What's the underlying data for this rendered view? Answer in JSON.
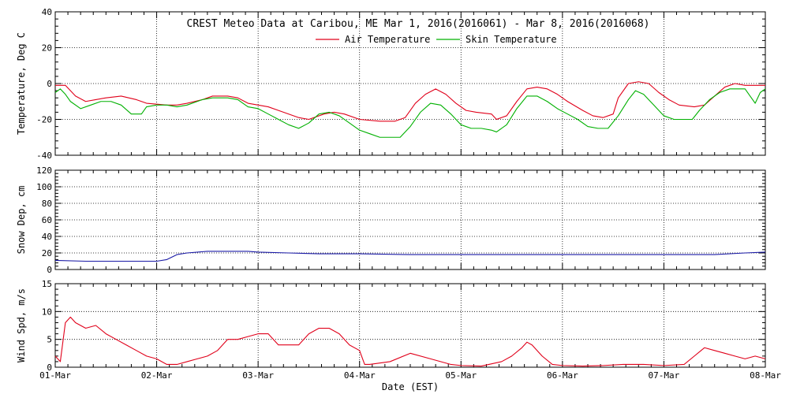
{
  "chart_data": {
    "type": "line",
    "title": "CREST Meteo Data at Caribou, ME   Mar  1, 2016(2016061) - Mar  8, 2016(2016068)",
    "xlabel": "Date (EST)",
    "x_ticks": [
      "01-Mar",
      "02-Mar",
      "03-Mar",
      "04-Mar",
      "05-Mar",
      "06-Mar",
      "07-Mar",
      "08-Mar"
    ],
    "x_range_days": [
      0,
      7
    ],
    "grid": true,
    "panels": [
      {
        "id": "temperature",
        "ylabel": "Temperature, Deg C",
        "ylim": [
          -40,
          40
        ],
        "yticks": [
          -40,
          -20,
          0,
          20,
          40
        ],
        "legend": "top-center",
        "series": [
          {
            "name": "Air Temperature",
            "color": "#e0001a",
            "points": [
              [
                0,
                -1
              ],
              [
                0.1,
                -1
              ],
              [
                0.2,
                -7
              ],
              [
                0.3,
                -10
              ],
              [
                0.4,
                -9
              ],
              [
                0.5,
                -8
              ],
              [
                0.65,
                -7
              ],
              [
                0.8,
                -9
              ],
              [
                0.9,
                -11
              ],
              [
                1.0,
                -11.5
              ],
              [
                1.1,
                -12
              ],
              [
                1.2,
                -12
              ],
              [
                1.3,
                -11
              ],
              [
                1.45,
                -9
              ],
              [
                1.55,
                -7
              ],
              [
                1.7,
                -7
              ],
              [
                1.8,
                -8
              ],
              [
                1.9,
                -11
              ],
              [
                2.0,
                -12
              ],
              [
                2.1,
                -13
              ],
              [
                2.2,
                -15
              ],
              [
                2.4,
                -19
              ],
              [
                2.5,
                -20
              ],
              [
                2.65,
                -17
              ],
              [
                2.75,
                -16
              ],
              [
                2.85,
                -17
              ],
              [
                3.0,
                -20
              ],
              [
                3.2,
                -21
              ],
              [
                3.35,
                -21
              ],
              [
                3.45,
                -19
              ],
              [
                3.55,
                -11
              ],
              [
                3.65,
                -6
              ],
              [
                3.75,
                -3
              ],
              [
                3.85,
                -6
              ],
              [
                3.95,
                -11
              ],
              [
                4.05,
                -15
              ],
              [
                4.15,
                -16
              ],
              [
                4.3,
                -17
              ],
              [
                4.35,
                -20
              ],
              [
                4.45,
                -18
              ],
              [
                4.55,
                -10
              ],
              [
                4.65,
                -3
              ],
              [
                4.75,
                -2
              ],
              [
                4.85,
                -3
              ],
              [
                4.95,
                -6
              ],
              [
                5.05,
                -10
              ],
              [
                5.2,
                -15
              ],
              [
                5.3,
                -18
              ],
              [
                5.4,
                -19
              ],
              [
                5.5,
                -17
              ],
              [
                5.55,
                -8
              ],
              [
                5.65,
                0
              ],
              [
                5.75,
                1
              ],
              [
                5.85,
                0
              ],
              [
                5.95,
                -5
              ],
              [
                6.05,
                -9
              ],
              [
                6.15,
                -12
              ],
              [
                6.3,
                -13
              ],
              [
                6.4,
                -12
              ],
              [
                6.5,
                -7
              ],
              [
                6.6,
                -2
              ],
              [
                6.7,
                0
              ],
              [
                6.8,
                -1
              ],
              [
                6.9,
                -1
              ],
              [
                7.0,
                -1
              ]
            ]
          },
          {
            "name": "Skin Temperature",
            "color": "#00b000",
            "points": [
              [
                0,
                -5
              ],
              [
                0.05,
                -3
              ],
              [
                0.1,
                -6
              ],
              [
                0.15,
                -10
              ],
              [
                0.25,
                -14
              ],
              [
                0.35,
                -12
              ],
              [
                0.45,
                -10
              ],
              [
                0.55,
                -10
              ],
              [
                0.65,
                -12
              ],
              [
                0.75,
                -17
              ],
              [
                0.85,
                -17
              ],
              [
                0.9,
                -13
              ],
              [
                1.0,
                -12
              ],
              [
                1.1,
                -12
              ],
              [
                1.2,
                -13
              ],
              [
                1.3,
                -12
              ],
              [
                1.45,
                -9
              ],
              [
                1.55,
                -8
              ],
              [
                1.7,
                -8
              ],
              [
                1.8,
                -9
              ],
              [
                1.9,
                -13
              ],
              [
                2.0,
                -14
              ],
              [
                2.1,
                -17
              ],
              [
                2.2,
                -20
              ],
              [
                2.3,
                -23
              ],
              [
                2.4,
                -25
              ],
              [
                2.5,
                -22
              ],
              [
                2.6,
                -17
              ],
              [
                2.7,
                -16
              ],
              [
                2.8,
                -18
              ],
              [
                2.9,
                -22
              ],
              [
                3.0,
                -26
              ],
              [
                3.1,
                -28
              ],
              [
                3.2,
                -30
              ],
              [
                3.3,
                -30
              ],
              [
                3.4,
                -30
              ],
              [
                3.5,
                -24
              ],
              [
                3.6,
                -16
              ],
              [
                3.7,
                -11
              ],
              [
                3.8,
                -12
              ],
              [
                3.9,
                -17
              ],
              [
                4.0,
                -23
              ],
              [
                4.1,
                -25
              ],
              [
                4.2,
                -25
              ],
              [
                4.3,
                -26
              ],
              [
                4.35,
                -27
              ],
              [
                4.45,
                -23
              ],
              [
                4.55,
                -14
              ],
              [
                4.65,
                -7
              ],
              [
                4.75,
                -7
              ],
              [
                4.85,
                -10
              ],
              [
                4.95,
                -14
              ],
              [
                5.05,
                -17
              ],
              [
                5.15,
                -20
              ],
              [
                5.25,
                -24
              ],
              [
                5.35,
                -25
              ],
              [
                5.45,
                -25
              ],
              [
                5.55,
                -18
              ],
              [
                5.65,
                -9
              ],
              [
                5.72,
                -4
              ],
              [
                5.8,
                -6
              ],
              [
                5.9,
                -12
              ],
              [
                6.0,
                -18
              ],
              [
                6.1,
                -20
              ],
              [
                6.2,
                -20
              ],
              [
                6.28,
                -20
              ],
              [
                6.35,
                -15
              ],
              [
                6.45,
                -9
              ],
              [
                6.55,
                -5
              ],
              [
                6.65,
                -3
              ],
              [
                6.75,
                -3
              ],
              [
                6.8,
                -3
              ],
              [
                6.85,
                -7
              ],
              [
                6.9,
                -11
              ],
              [
                6.95,
                -5
              ],
              [
                7.0,
                -3
              ]
            ]
          }
        ]
      },
      {
        "id": "snow",
        "ylabel": "Snow Dep, cm",
        "ylim": [
          0,
          120
        ],
        "yticks": [
          0,
          20,
          40,
          60,
          80,
          100,
          120
        ],
        "series": [
          {
            "name": "",
            "color": "#1a1aa6",
            "points": [
              [
                0,
                11
              ],
              [
                0.3,
                10
              ],
              [
                0.6,
                10
              ],
              [
                0.9,
                10
              ],
              [
                1.0,
                10
              ],
              [
                1.1,
                12
              ],
              [
                1.2,
                18
              ],
              [
                1.3,
                20
              ],
              [
                1.5,
                22
              ],
              [
                1.7,
                22
              ],
              [
                1.9,
                22
              ],
              [
                2.0,
                21
              ],
              [
                2.3,
                20
              ],
              [
                2.6,
                19
              ],
              [
                3.0,
                19
              ],
              [
                3.5,
                18
              ],
              [
                4.0,
                18
              ],
              [
                4.5,
                18
              ],
              [
                5.0,
                18
              ],
              [
                5.5,
                18
              ],
              [
                6.0,
                18
              ],
              [
                6.5,
                18
              ],
              [
                6.8,
                20
              ],
              [
                7.0,
                21
              ]
            ]
          }
        ]
      },
      {
        "id": "wind",
        "ylabel": "Wind Spd, m/s",
        "ylim": [
          0,
          15
        ],
        "yticks": [
          0,
          5,
          10,
          15
        ],
        "series": [
          {
            "name": "",
            "color": "#e0001a",
            "points": [
              [
                0,
                2
              ],
              [
                0.05,
                1
              ],
              [
                0.1,
                8
              ],
              [
                0.15,
                9
              ],
              [
                0.2,
                8
              ],
              [
                0.3,
                7
              ],
              [
                0.4,
                7.5
              ],
              [
                0.5,
                6
              ],
              [
                0.6,
                5
              ],
              [
                0.7,
                4
              ],
              [
                0.8,
                3
              ],
              [
                0.9,
                2
              ],
              [
                1.0,
                1.5
              ],
              [
                1.1,
                0.5
              ],
              [
                1.2,
                0.5
              ],
              [
                1.3,
                1
              ],
              [
                1.4,
                1.5
              ],
              [
                1.5,
                2
              ],
              [
                1.6,
                3
              ],
              [
                1.7,
                5
              ],
              [
                1.8,
                5
              ],
              [
                1.9,
                5.5
              ],
              [
                2.0,
                6
              ],
              [
                2.1,
                6
              ],
              [
                2.2,
                4
              ],
              [
                2.3,
                4
              ],
              [
                2.4,
                4
              ],
              [
                2.5,
                6
              ],
              [
                2.6,
                7
              ],
              [
                2.7,
                7
              ],
              [
                2.8,
                6
              ],
              [
                2.9,
                4
              ],
              [
                3.0,
                3
              ],
              [
                3.05,
                0.5
              ],
              [
                3.1,
                0.5
              ],
              [
                3.3,
                1
              ],
              [
                3.5,
                2.5
              ],
              [
                3.7,
                1.5
              ],
              [
                3.9,
                0.5
              ],
              [
                4.0,
                0.3
              ],
              [
                4.2,
                0.2
              ],
              [
                4.4,
                1
              ],
              [
                4.5,
                2
              ],
              [
                4.6,
                3.5
              ],
              [
                4.65,
                4.5
              ],
              [
                4.7,
                4
              ],
              [
                4.8,
                2
              ],
              [
                4.9,
                0.5
              ],
              [
                5.0,
                0.3
              ],
              [
                5.2,
                0.2
              ],
              [
                5.4,
                0.3
              ],
              [
                5.6,
                0.5
              ],
              [
                5.8,
                0.5
              ],
              [
                6.0,
                0.3
              ],
              [
                6.2,
                0.5
              ],
              [
                6.3,
                2
              ],
              [
                6.4,
                3.5
              ],
              [
                6.5,
                3
              ],
              [
                6.6,
                2.5
              ],
              [
                6.7,
                2
              ],
              [
                6.8,
                1.5
              ],
              [
                6.9,
                2
              ],
              [
                7.0,
                1.5
              ]
            ]
          }
        ]
      }
    ]
  }
}
